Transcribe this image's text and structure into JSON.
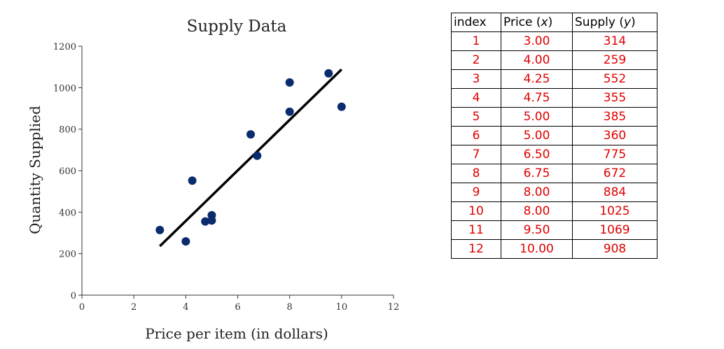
{
  "chart_data": {
    "type": "scatter",
    "title": "Supply Data",
    "xlabel": "Price per item (in dollars)",
    "ylabel": "Quantity Supplied",
    "xlim": [
      0,
      12
    ],
    "ylim": [
      0,
      1200
    ],
    "xticks": [
      0,
      2,
      4,
      6,
      8,
      10,
      12
    ],
    "yticks": [
      0,
      200,
      400,
      600,
      800,
      1000,
      1200
    ],
    "points": {
      "x": [
        3.0,
        4.0,
        4.25,
        4.75,
        5.0,
        5.0,
        6.5,
        6.75,
        8.0,
        8.0,
        9.5,
        10.0
      ],
      "y": [
        314,
        259,
        552,
        355,
        385,
        360,
        775,
        672,
        884,
        1025,
        1069,
        908
      ]
    },
    "trendline": {
      "x": [
        3.0,
        10.0
      ],
      "y": [
        236,
        1088
      ]
    },
    "point_color": "#0a2c6e",
    "line_color": "#000000"
  },
  "table": {
    "headers": {
      "index": "index",
      "price_label": "Price",
      "price_var": "x",
      "supply_label": "Supply",
      "supply_var": "y"
    },
    "rows": [
      {
        "index": "1",
        "price": "3.00",
        "supply": "314"
      },
      {
        "index": "2",
        "price": "4.00",
        "supply": "259"
      },
      {
        "index": "3",
        "price": "4.25",
        "supply": "552"
      },
      {
        "index": "4",
        "price": "4.75",
        "supply": "355"
      },
      {
        "index": "5",
        "price": "5.00",
        "supply": "385"
      },
      {
        "index": "6",
        "price": "5.00",
        "supply": "360"
      },
      {
        "index": "7",
        "price": "6.50",
        "supply": "775"
      },
      {
        "index": "8",
        "price": "6.75",
        "supply": "672"
      },
      {
        "index": "9",
        "price": "8.00",
        "supply": "884"
      },
      {
        "index": "10",
        "price": "8.00",
        "supply": "1025"
      },
      {
        "index": "11",
        "price": "9.50",
        "supply": "1069"
      },
      {
        "index": "12",
        "price": "10.00",
        "supply": "908"
      }
    ],
    "value_color": "#e00000"
  }
}
